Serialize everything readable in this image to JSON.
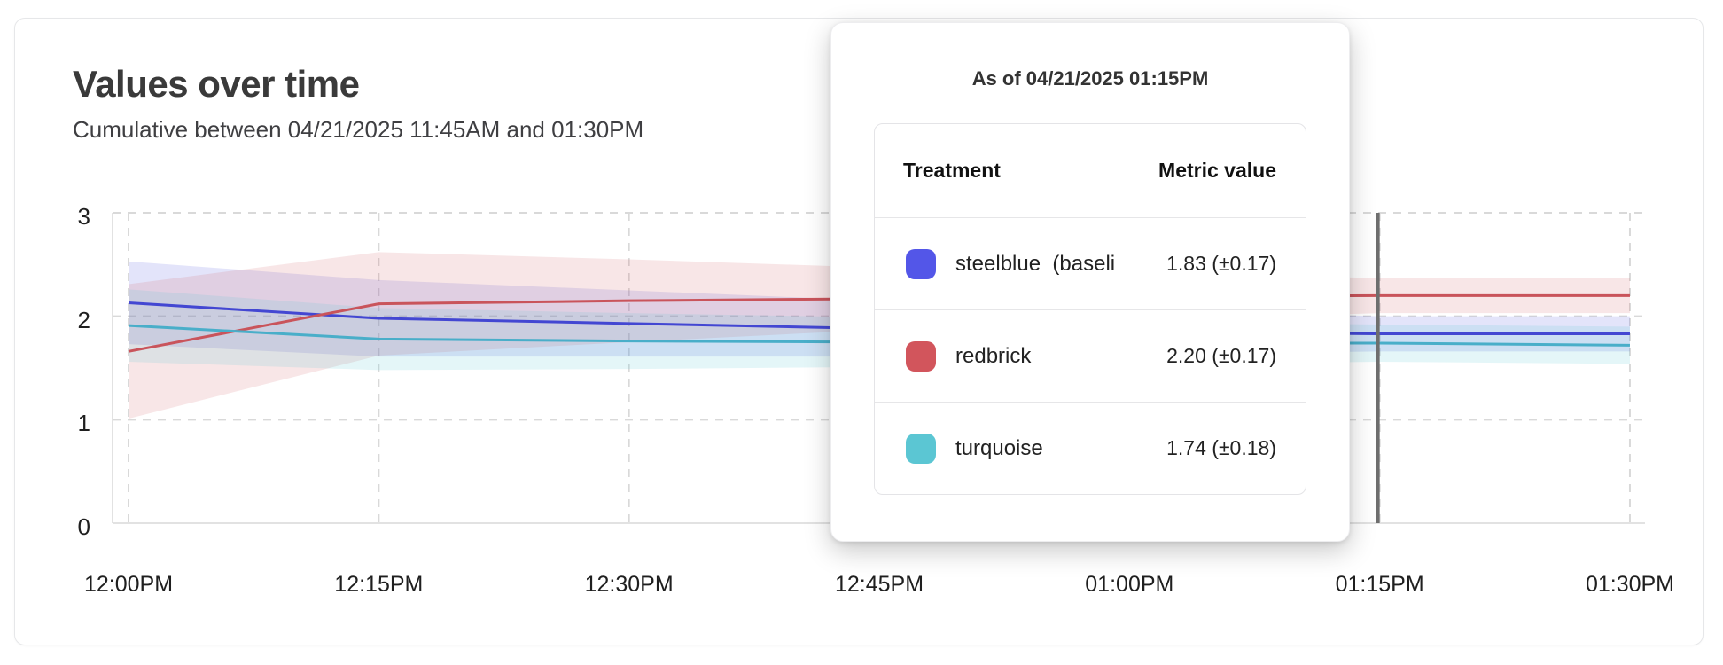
{
  "header": {
    "title": "Values over time",
    "subtitle": "Cumulative between 04/21/2025 11:45AM and 01:30PM"
  },
  "tooltip": {
    "title": "As of 04/21/2025 01:15PM",
    "columns": {
      "treatment": "Treatment",
      "metric": "Metric value"
    },
    "rows": [
      {
        "label": "steelblue  (baseli",
        "value": "1.83 (±0.17)",
        "swatch_color": "#5356e8"
      },
      {
        "label": "redbrick",
        "value": "2.20 (±0.17)",
        "swatch_color": "#d2555c"
      },
      {
        "label": "turquoise",
        "value": "1.74 (±0.18)",
        "swatch_color": "#5bc6d3"
      }
    ]
  },
  "chart_data": {
    "type": "line",
    "title": "Values over time",
    "subtitle": "Cumulative between 04/21/2025 11:45AM and 01:30PM",
    "x_ticks": [
      "12:00PM",
      "12:15PM",
      "12:30PM",
      "12:45PM",
      "01:00PM",
      "01:15PM",
      "01:30PM"
    ],
    "y_ticks": [
      0,
      1,
      2,
      3
    ],
    "ylim": [
      0,
      3
    ],
    "grid": true,
    "legend_position": "none",
    "cursor": {
      "x_label": "01:15PM",
      "color": "#6e6e6e"
    },
    "series": [
      {
        "name": "steelblue  (baseli",
        "line_color": "#4347d2",
        "band_color": "rgba(80,84,222,0.16)",
        "values": [
          2.13,
          1.98,
          1.93,
          1.88,
          1.85,
          1.83,
          1.83
        ],
        "ci": [
          0.4,
          0.37,
          0.32,
          0.27,
          0.22,
          0.17,
          0.17
        ]
      },
      {
        "name": "redbrick",
        "line_color": "#c9545b",
        "band_color": "rgba(205,84,91,0.15)",
        "values": [
          1.66,
          2.12,
          2.15,
          2.17,
          2.19,
          2.2,
          2.2
        ],
        "ci": [
          0.65,
          0.5,
          0.4,
          0.3,
          0.23,
          0.17,
          0.17
        ]
      },
      {
        "name": "turquoise",
        "line_color": "#49aec9",
        "band_color": "rgba(88,198,210,0.16)",
        "values": [
          1.91,
          1.78,
          1.76,
          1.75,
          1.74,
          1.74,
          1.72
        ],
        "ci": [
          0.35,
          0.3,
          0.27,
          0.24,
          0.21,
          0.18,
          0.18
        ]
      }
    ],
    "grid_dash_color": "#d9d9d9",
    "axis_line_color": "#e2e2e2"
  }
}
